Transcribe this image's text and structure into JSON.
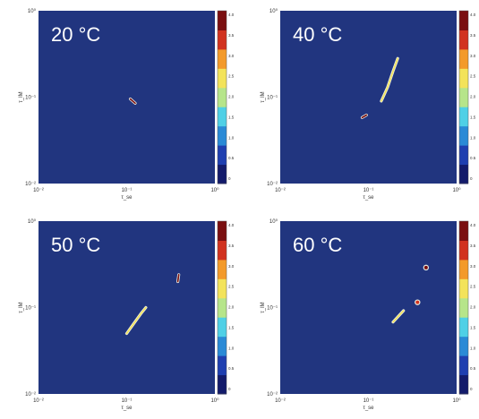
{
  "figure": {
    "colormap": [
      "#131b6b",
      "#1f3fb0",
      "#2a8ad6",
      "#4fd0e6",
      "#b6e58a",
      "#f3e35a",
      "#f39a2a",
      "#d1321f",
      "#7a0f10"
    ],
    "plot_background": "#21357f",
    "title_color": "#ffffff"
  },
  "chart_data": [
    {
      "type": "heatmap",
      "title": "20 °C",
      "xlabel": "τ_se",
      "ylabel": "τ_IM",
      "log_scale": true,
      "grid": false,
      "xlim": [
        0.01,
        1
      ],
      "ylim": [
        0.01,
        1
      ],
      "x_ticks": [
        "10⁻²",
        "10⁻¹",
        "10⁰"
      ],
      "y_ticks": [
        "10⁻²",
        "10⁻¹",
        "10⁰"
      ],
      "colorbar": {
        "range": [
          0,
          4
        ],
        "ticks": [
          "4.0",
          "3.5",
          "3.0",
          "2.5",
          "2.0",
          "1.5",
          "1.0",
          "0.5",
          "0"
        ]
      },
      "features": [
        {
          "kind": "streak",
          "points": [
            [
              0.11,
              0.095
            ],
            [
              0.125,
              0.085
            ]
          ],
          "intensity": 4.0
        }
      ]
    },
    {
      "type": "heatmap",
      "title": "40 °C",
      "xlabel": "τ_se",
      "ylabel": "τ_IM",
      "log_scale": true,
      "grid": false,
      "xlim": [
        0.01,
        1
      ],
      "ylim": [
        0.01,
        1
      ],
      "x_ticks": [
        "10⁻²",
        "10⁻¹",
        "10⁰"
      ],
      "y_ticks": [
        "10⁻²",
        "10⁻¹",
        "10⁰"
      ],
      "colorbar": {
        "range": [
          0,
          4
        ],
        "ticks": [
          "4.0",
          "3.5",
          "3.0",
          "2.5",
          "2.0",
          "1.5",
          "1.0",
          "0.5",
          "0"
        ]
      },
      "features": [
        {
          "kind": "streak",
          "points": [
            [
              0.14,
              0.09
            ],
            [
              0.165,
              0.13
            ],
            [
              0.19,
              0.2
            ],
            [
              0.215,
              0.28
            ]
          ],
          "intensity": 2.5
        },
        {
          "kind": "streak",
          "points": [
            [
              0.085,
              0.058
            ],
            [
              0.095,
              0.062
            ]
          ],
          "intensity": 4.0
        }
      ]
    },
    {
      "type": "heatmap",
      "title": "50 °C",
      "xlabel": "τ_se",
      "ylabel": "τ_IM",
      "log_scale": true,
      "grid": false,
      "xlim": [
        0.01,
        1
      ],
      "ylim": [
        0.01,
        1
      ],
      "x_ticks": [
        "10⁻²",
        "10⁻¹",
        "10⁰"
      ],
      "y_ticks": [
        "10⁻²",
        "10⁻¹",
        "10⁰"
      ],
      "colorbar": {
        "range": [
          0,
          4
        ],
        "ticks": [
          "4.0",
          "3.5",
          "3.0",
          "2.5",
          "2.0",
          "1.5",
          "1.0",
          "0.5",
          "0"
        ]
      },
      "features": [
        {
          "kind": "streak",
          "points": [
            [
              0.1,
              0.05
            ],
            [
              0.12,
              0.065
            ],
            [
              0.145,
              0.085
            ],
            [
              0.165,
              0.1
            ]
          ],
          "intensity": 2.5
        },
        {
          "kind": "streak",
          "points": [
            [
              0.38,
              0.2
            ],
            [
              0.39,
              0.24
            ]
          ],
          "intensity": 4.0
        }
      ]
    },
    {
      "type": "heatmap",
      "title": "60 °C",
      "xlabel": "τ_se",
      "ylabel": "τ_IM",
      "log_scale": true,
      "grid": false,
      "xlim": [
        0.01,
        1
      ],
      "ylim": [
        0.01,
        1
      ],
      "x_ticks": [
        "10⁻²",
        "10⁻¹",
        "10⁰"
      ],
      "y_ticks": [
        "10⁻²",
        "10⁻¹",
        "10⁰"
      ],
      "colorbar": {
        "range": [
          0,
          4
        ],
        "ticks": [
          "4.0",
          "3.5",
          "3.0",
          "2.5",
          "2.0",
          "1.5",
          "1.0",
          "0.5",
          "0"
        ]
      },
      "features": [
        {
          "kind": "streak",
          "points": [
            [
              0.19,
              0.068
            ],
            [
              0.22,
              0.08
            ],
            [
              0.25,
              0.092
            ]
          ],
          "intensity": 2.5
        },
        {
          "kind": "spot",
          "points": [
            [
              0.45,
              0.29
            ]
          ],
          "intensity": 4.0
        },
        {
          "kind": "spot",
          "points": [
            [
              0.36,
              0.115
            ]
          ],
          "intensity": 3.5
        }
      ]
    }
  ]
}
